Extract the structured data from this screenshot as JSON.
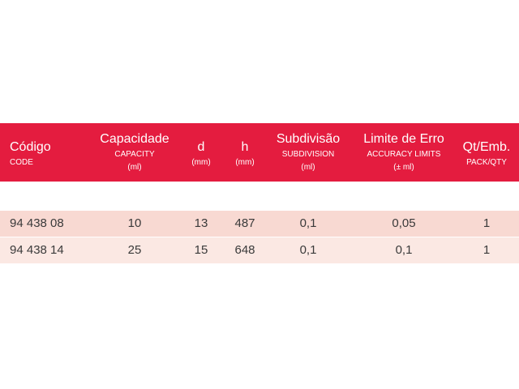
{
  "header": {
    "code": {
      "main": "Código",
      "sub": "CODE"
    },
    "capacity": {
      "main": "Capacidade",
      "sub1": "CAPACITY",
      "sub2": "(ml)"
    },
    "d": {
      "main": "d",
      "sub": "(mm)"
    },
    "h": {
      "main": "h",
      "sub": "(mm)"
    },
    "subdivision": {
      "main": "Subdivisão",
      "sub1": "SUBDIVISION",
      "sub2": "(ml)"
    },
    "limit": {
      "main": "Limite de Erro",
      "sub1": "ACCURACY LIMITS",
      "sub2": "(± ml)"
    },
    "qty": {
      "main": "Qt/Emb.",
      "sub": "PACK/QTY"
    }
  },
  "rows": [
    {
      "code": "94 438 08",
      "capacity": "10",
      "d": "13",
      "h": "487",
      "subdivision": "0,1",
      "limit": "0,05",
      "qty": "1"
    },
    {
      "code": "94 438 14",
      "capacity": "25",
      "d": "15",
      "h": "648",
      "subdivision": "0,1",
      "limit": "0,1",
      "qty": "1"
    }
  ],
  "colors": {
    "header_bg": "#e41c3f",
    "row1_bg": "#f8d9d2",
    "row2_bg": "#fbe8e3",
    "text": "#3a3a3a"
  }
}
